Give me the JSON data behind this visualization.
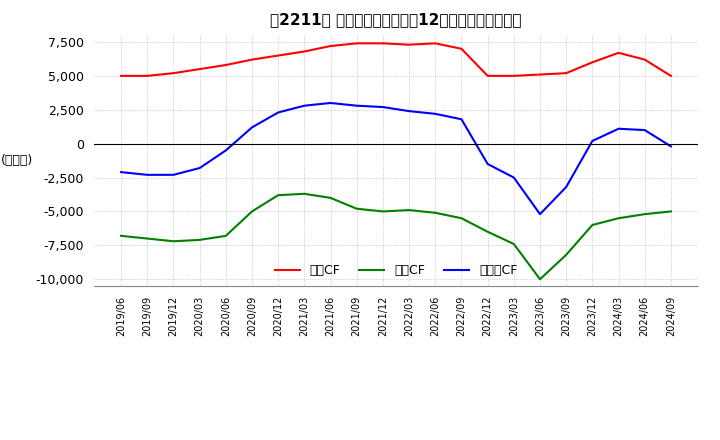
{
  "title": "　2211、 キャッシュフローの12か月移動合計の推移",
  "ylabel": "(百万円)",
  "ylim": [
    -10500,
    8000
  ],
  "yticks": [
    -10000,
    -7500,
    -5000,
    -2500,
    0,
    2500,
    5000,
    7500
  ],
  "dates": [
    "2019/06",
    "2019/09",
    "2019/12",
    "2020/03",
    "2020/06",
    "2020/09",
    "2020/12",
    "2021/03",
    "2021/06",
    "2021/09",
    "2021/12",
    "2022/03",
    "2022/06",
    "2022/09",
    "2022/12",
    "2023/03",
    "2023/06",
    "2023/09",
    "2023/12",
    "2024/03",
    "2024/06",
    "2024/09"
  ],
  "operating_cf": [
    5000,
    5000,
    5200,
    5500,
    5800,
    6200,
    6500,
    6800,
    7200,
    7400,
    7400,
    7300,
    7400,
    7000,
    5000,
    5000,
    5100,
    5200,
    6000,
    6700,
    6200,
    5000
  ],
  "investing_cf": [
    -6800,
    -7000,
    -7200,
    -7100,
    -6800,
    -5000,
    -3800,
    -3700,
    -4000,
    -4800,
    -5000,
    -4900,
    -5100,
    -5500,
    -6500,
    -7400,
    -10000,
    -8200,
    -6000,
    -5500,
    -5200,
    -5000
  ],
  "free_cf": [
    -2100,
    -2300,
    -2300,
    -1800,
    -500,
    1200,
    2300,
    2800,
    3000,
    2800,
    2700,
    2400,
    2200,
    1800,
    -1500,
    -2500,
    -5200,
    -3200,
    200,
    1100,
    1000,
    -200
  ],
  "operating_color": "#ff0000",
  "investing_color": "#008000",
  "free_color": "#0000ff",
  "bg_color": "#ffffff",
  "grid_color": "#aaaaaa",
  "legend_labels": [
    "営業CF",
    "投資CF",
    "フリーCF"
  ]
}
